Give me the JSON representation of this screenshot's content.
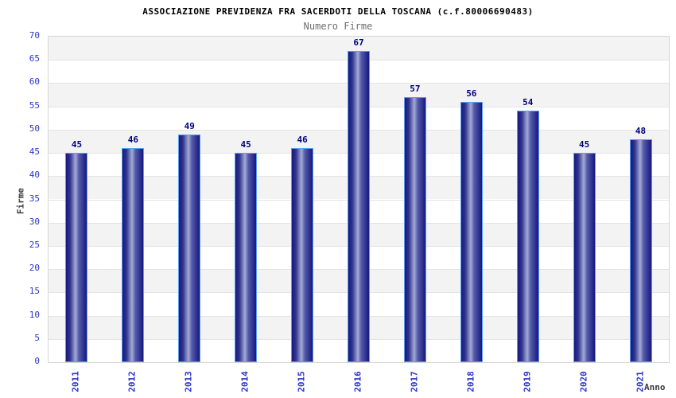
{
  "header": {
    "title": "ASSOCIAZIONE PREVIDENZA FRA SACERDOTI DELLA TOSCANA (c.f.80006690483)",
    "subtitle": "Numero Firme"
  },
  "chart_data": {
    "type": "bar",
    "title": "ASSOCIAZIONE PREVIDENZA FRA SACERDOTI DELLA TOSCANA (c.f.80006690483)",
    "subtitle": "Numero Firme",
    "categories": [
      "2011",
      "2012",
      "2013",
      "2014",
      "2015",
      "2016",
      "2017",
      "2018",
      "2019",
      "2020",
      "2021"
    ],
    "values": [
      45,
      46,
      49,
      45,
      46,
      67,
      57,
      56,
      54,
      45,
      48
    ],
    "xlabel": "Anno",
    "ylabel": "Firme",
    "ylim": [
      0,
      70
    ],
    "ytick_step": 5,
    "grid": true,
    "legend": false,
    "background_bands": "alternating gray/white every 5 units, gray band at top (65-70)"
  },
  "colors": {
    "tick_color": "#2b35cc",
    "value_color": "#00007d",
    "bar_edge": "#17177f",
    "bar_light": "#a4abd5",
    "bar_border": "#58a0f0",
    "band_gray": "#f3f3f3",
    "grid_line": "#e4e4e4",
    "plot_border": "#d6d6d6",
    "axis_title_color": "#3c3c3c",
    "subtitle_color": "#6e6e6e"
  }
}
